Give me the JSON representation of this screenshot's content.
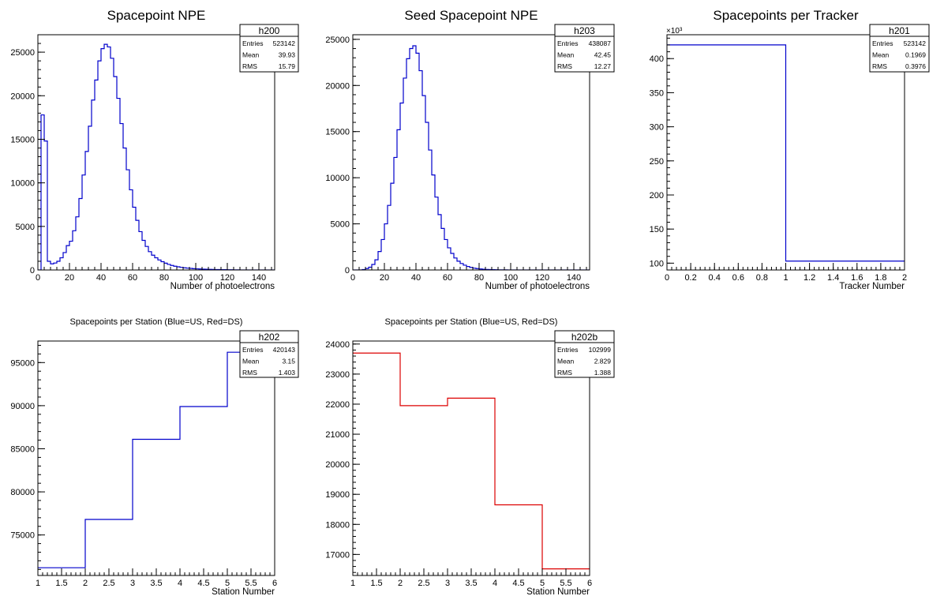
{
  "chart_data": [
    {
      "type": "histogram",
      "title": "Spacepoint NPE",
      "xlabel": "Number of photoelectrons",
      "ylabel": "",
      "xlim": [
        0,
        150
      ],
      "ylim": [
        0,
        27000
      ],
      "x_ticks": [
        0,
        20,
        40,
        60,
        80,
        100,
        120,
        140
      ],
      "y_ticks": [
        0,
        5000,
        10000,
        15000,
        20000,
        25000
      ],
      "line_color": "#0000cc",
      "bin_width": 2,
      "bin_start": 0,
      "values": [
        0,
        17800,
        14800,
        1000,
        700,
        800,
        1000,
        1400,
        2000,
        2800,
        3300,
        4500,
        6100,
        8200,
        10900,
        13600,
        16500,
        19500,
        21800,
        24000,
        25400,
        25900,
        25600,
        24300,
        22200,
        19700,
        16800,
        14000,
        11500,
        9200,
        7200,
        5700,
        4400,
        3400,
        2700,
        2100,
        1700,
        1400,
        1150,
        950,
        780,
        640,
        520,
        430,
        360,
        300,
        250,
        210,
        180,
        150,
        130,
        110,
        95,
        80,
        70,
        60,
        50,
        45,
        38,
        32,
        26,
        20,
        15,
        10,
        6,
        3,
        1,
        0,
        0,
        0,
        0,
        0,
        0,
        0,
        0
      ],
      "stats": {
        "name": "h200",
        "Entries": "523142",
        "Mean": "39.93",
        "RMS": "15.79"
      }
    },
    {
      "type": "histogram",
      "title": "Seed Spacepoint NPE",
      "xlabel": "Number of photoelectrons",
      "ylabel": "",
      "xlim": [
        0,
        150
      ],
      "ylim": [
        0,
        25500
      ],
      "x_ticks": [
        0,
        20,
        40,
        60,
        80,
        100,
        120,
        140
      ],
      "y_ticks": [
        0,
        5000,
        10000,
        15000,
        20000,
        25000
      ],
      "line_color": "#0000cc",
      "bin_width": 2,
      "bin_start": 0,
      "values": [
        0,
        0,
        0,
        50,
        150,
        300,
        600,
        1100,
        2000,
        3300,
        5000,
        7000,
        9400,
        12200,
        15200,
        18100,
        20800,
        22900,
        24000,
        24300,
        23500,
        21600,
        18900,
        16000,
        13000,
        10300,
        7900,
        6000,
        4500,
        3300,
        2400,
        1800,
        1300,
        950,
        700,
        520,
        380,
        280,
        200,
        150,
        110,
        80,
        60,
        45,
        34,
        25,
        18,
        12,
        8,
        5,
        3,
        2,
        1,
        0,
        0,
        0,
        0,
        0,
        0,
        0,
        0,
        0,
        0,
        0,
        0,
        0,
        0,
        0,
        0,
        0,
        0,
        0,
        0,
        0,
        0
      ],
      "stats": {
        "name": "h203",
        "Entries": "438087",
        "Mean": "42.45",
        "RMS": "12.27"
      }
    },
    {
      "type": "histogram",
      "title": "Spacepoints per Tracker",
      "xlabel": "Tracker Number",
      "ylabel": "",
      "y_multiplier": "×10³",
      "xlim": [
        0,
        2
      ],
      "ylim": [
        90,
        435
      ],
      "x_ticks": [
        0,
        0.2,
        0.4,
        0.6,
        0.8,
        1,
        1.2,
        1.4,
        1.6,
        1.8,
        2
      ],
      "y_ticks": [
        100,
        150,
        200,
        250,
        300,
        350,
        400
      ],
      "line_color": "#0000cc",
      "bin_width": 1,
      "bin_start": 0,
      "values": [
        420.1,
        103.0
      ],
      "stats": {
        "name": "h201",
        "Entries": "523142",
        "Mean": "0.1969",
        "RMS": "0.3976"
      }
    },
    {
      "type": "histogram",
      "title": "Spacepoints per Station (Blue=US, Red=DS)",
      "xlabel": "Station Number",
      "ylabel": "",
      "xlim": [
        1,
        6
      ],
      "ylim": [
        70300,
        97500
      ],
      "x_ticks": [
        1,
        1.5,
        2,
        2.5,
        3,
        3.5,
        4,
        4.5,
        5,
        5.5,
        6
      ],
      "y_ticks": [
        75000,
        80000,
        85000,
        90000,
        95000
      ],
      "line_color": "#0000cc",
      "bin_width": 1,
      "bin_start": 1,
      "values": [
        71200,
        76800,
        86100,
        89900,
        96200
      ],
      "stats": {
        "name": "h202",
        "Entries": "420143",
        "Mean": "3.15",
        "RMS": "1.403"
      }
    },
    {
      "type": "histogram",
      "title": "Spacepoints per Station (Blue=US, Red=DS)",
      "xlabel": "Station Number",
      "ylabel": "",
      "xlim": [
        1,
        6
      ],
      "ylim": [
        16300,
        24100
      ],
      "x_ticks": [
        1,
        1.5,
        2,
        2.5,
        3,
        3.5,
        4,
        4.5,
        5,
        5.5,
        6
      ],
      "y_ticks": [
        17000,
        18000,
        19000,
        20000,
        21000,
        22000,
        23000,
        24000
      ],
      "line_color": "#dd0000",
      "bin_width": 1,
      "bin_start": 1,
      "values": [
        23700,
        21950,
        22200,
        18650,
        16520
      ],
      "stats": {
        "name": "h202b",
        "Entries": "102999",
        "Mean": "2.829",
        "RMS": "1.388"
      }
    }
  ]
}
